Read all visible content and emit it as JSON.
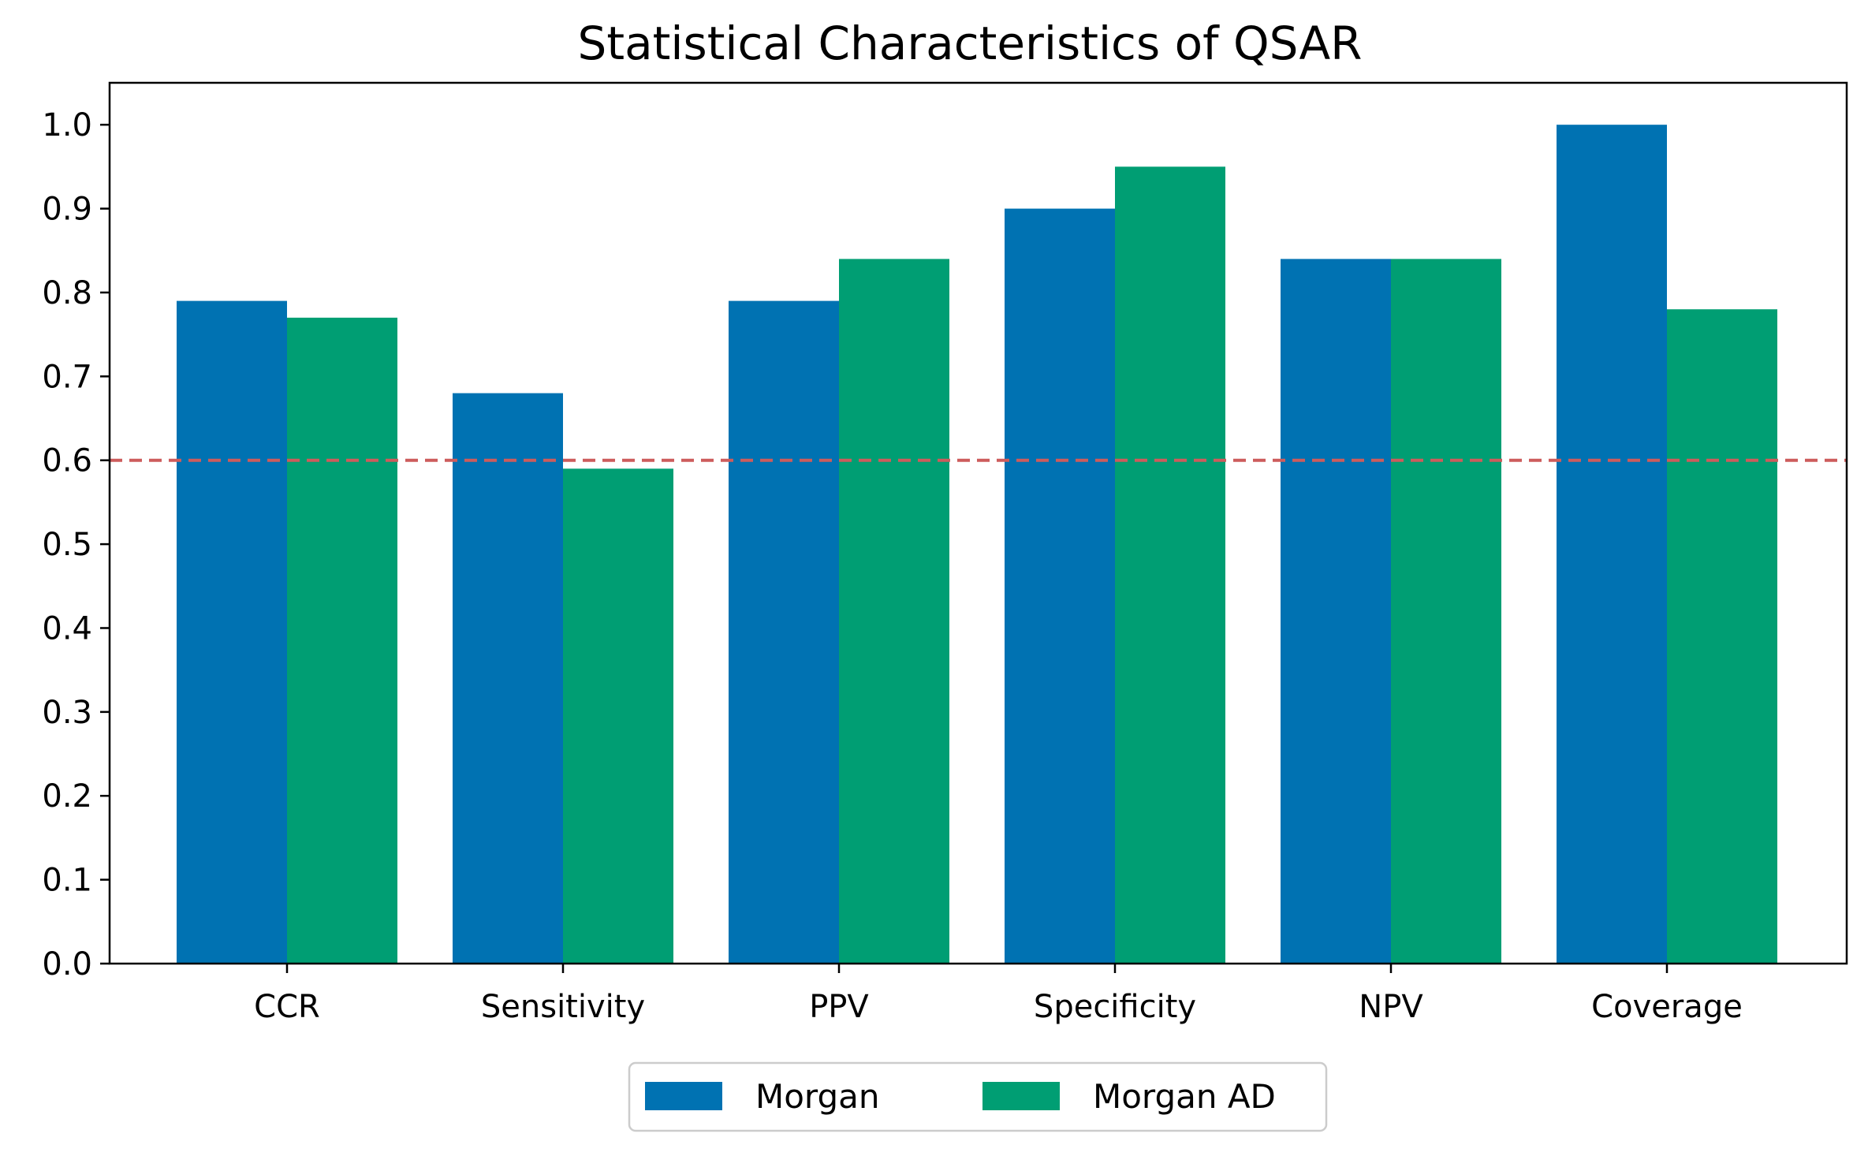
{
  "chart_data": {
    "type": "bar",
    "title": "Statistical Characteristics of QSAR",
    "xlabel": "",
    "ylabel": "",
    "categories": [
      "CCR",
      "Sensitivity",
      "PPV",
      "Specificity",
      "NPV",
      "Coverage"
    ],
    "series": [
      {
        "name": "Morgan",
        "color": "#0072b2",
        "values": [
          0.79,
          0.68,
          0.79,
          0.9,
          0.84,
          1.0
        ]
      },
      {
        "name": "Morgan AD",
        "color": "#009e73",
        "values": [
          0.77,
          0.59,
          0.84,
          0.95,
          0.84,
          0.78
        ]
      }
    ],
    "ylim": [
      0,
      1.05
    ],
    "yticks": [
      "0.0",
      "0.1",
      "0.2",
      "0.3",
      "0.4",
      "0.5",
      "0.6",
      "0.7",
      "0.8",
      "0.9",
      "1.0"
    ],
    "threshold": {
      "value": 0.6,
      "color": "#cd5c5c",
      "style": "dashed"
    },
    "grid": false,
    "legend_position": "bottom-center"
  }
}
